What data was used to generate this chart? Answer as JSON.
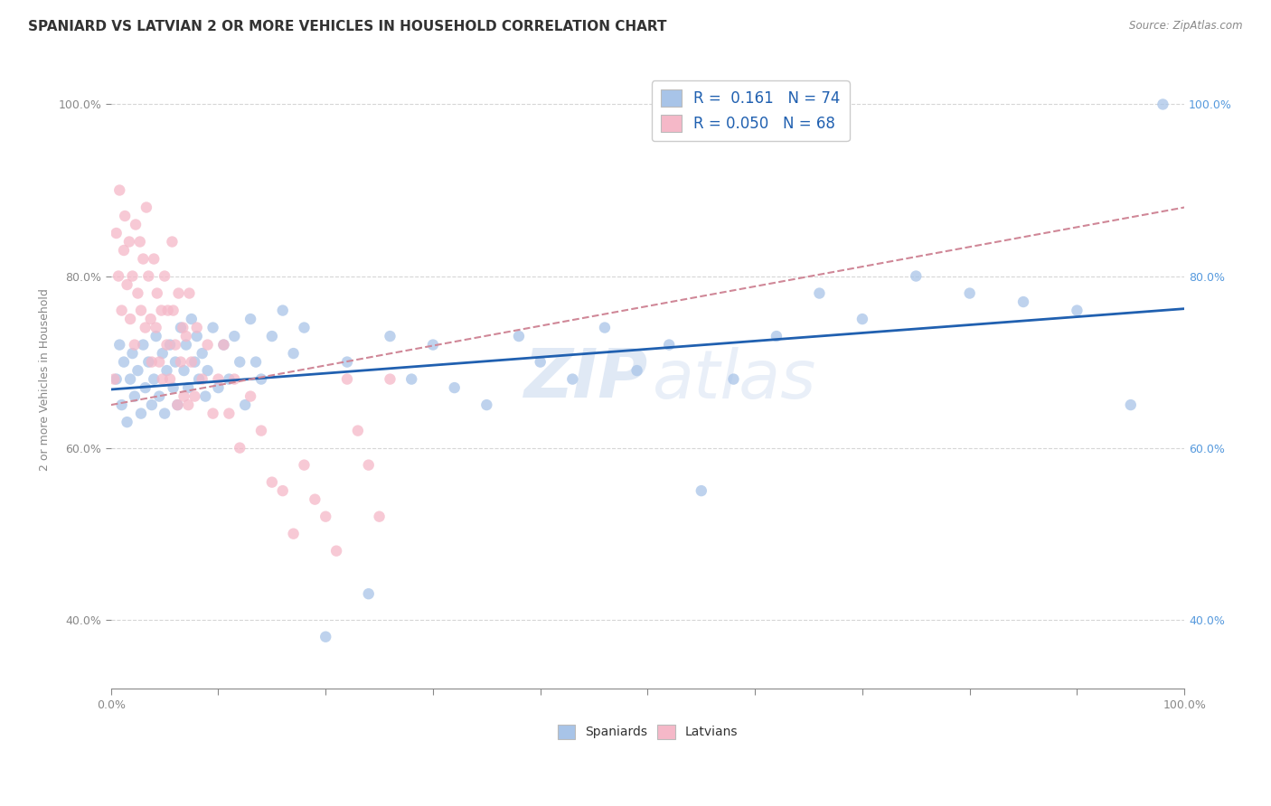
{
  "title": "SPANIARD VS LATVIAN 2 OR MORE VEHICLES IN HOUSEHOLD CORRELATION CHART",
  "source": "Source: ZipAtlas.com",
  "ylabel": "2 or more Vehicles in Household",
  "blue_R": 0.161,
  "blue_N": 74,
  "pink_R": 0.05,
  "pink_N": 68,
  "blue_color": "#a8c4e8",
  "pink_color": "#f5b8c8",
  "blue_line_color": "#2060b0",
  "pink_line_color": "#d08898",
  "watermark_zip": "ZIP",
  "watermark_atlas": "atlas",
  "xmin": 0.0,
  "xmax": 1.0,
  "ymin": 0.32,
  "ymax": 1.04,
  "blue_scatter_x": [
    0.005,
    0.008,
    0.01,
    0.012,
    0.015,
    0.018,
    0.02,
    0.022,
    0.025,
    0.028,
    0.03,
    0.032,
    0.035,
    0.038,
    0.04,
    0.042,
    0.045,
    0.048,
    0.05,
    0.052,
    0.055,
    0.058,
    0.06,
    0.062,
    0.065,
    0.068,
    0.07,
    0.072,
    0.075,
    0.078,
    0.08,
    0.082,
    0.085,
    0.088,
    0.09,
    0.095,
    0.1,
    0.105,
    0.11,
    0.115,
    0.12,
    0.125,
    0.13,
    0.135,
    0.14,
    0.15,
    0.16,
    0.17,
    0.18,
    0.2,
    0.22,
    0.24,
    0.26,
    0.28,
    0.3,
    0.32,
    0.35,
    0.38,
    0.4,
    0.43,
    0.46,
    0.49,
    0.52,
    0.55,
    0.58,
    0.62,
    0.66,
    0.7,
    0.75,
    0.8,
    0.85,
    0.9,
    0.95,
    0.98
  ],
  "blue_scatter_y": [
    0.68,
    0.72,
    0.65,
    0.7,
    0.63,
    0.68,
    0.71,
    0.66,
    0.69,
    0.64,
    0.72,
    0.67,
    0.7,
    0.65,
    0.68,
    0.73,
    0.66,
    0.71,
    0.64,
    0.69,
    0.72,
    0.67,
    0.7,
    0.65,
    0.74,
    0.69,
    0.72,
    0.67,
    0.75,
    0.7,
    0.73,
    0.68,
    0.71,
    0.66,
    0.69,
    0.74,
    0.67,
    0.72,
    0.68,
    0.73,
    0.7,
    0.65,
    0.75,
    0.7,
    0.68,
    0.73,
    0.76,
    0.71,
    0.74,
    0.38,
    0.7,
    0.43,
    0.73,
    0.68,
    0.72,
    0.67,
    0.65,
    0.73,
    0.7,
    0.68,
    0.74,
    0.69,
    0.72,
    0.55,
    0.68,
    0.73,
    0.78,
    0.75,
    0.8,
    0.78,
    0.77,
    0.76,
    0.65,
    1.0
  ],
  "pink_scatter_x": [
    0.003,
    0.005,
    0.007,
    0.008,
    0.01,
    0.012,
    0.013,
    0.015,
    0.017,
    0.018,
    0.02,
    0.022,
    0.023,
    0.025,
    0.027,
    0.028,
    0.03,
    0.032,
    0.033,
    0.035,
    0.037,
    0.038,
    0.04,
    0.042,
    0.043,
    0.045,
    0.047,
    0.048,
    0.05,
    0.052,
    0.053,
    0.055,
    0.057,
    0.058,
    0.06,
    0.062,
    0.063,
    0.065,
    0.067,
    0.068,
    0.07,
    0.072,
    0.073,
    0.075,
    0.078,
    0.08,
    0.085,
    0.09,
    0.095,
    0.1,
    0.105,
    0.11,
    0.115,
    0.12,
    0.13,
    0.14,
    0.15,
    0.16,
    0.17,
    0.18,
    0.19,
    0.2,
    0.21,
    0.22,
    0.23,
    0.24,
    0.25,
    0.26
  ],
  "pink_scatter_y": [
    0.68,
    0.85,
    0.8,
    0.9,
    0.76,
    0.83,
    0.87,
    0.79,
    0.84,
    0.75,
    0.8,
    0.72,
    0.86,
    0.78,
    0.84,
    0.76,
    0.82,
    0.74,
    0.88,
    0.8,
    0.75,
    0.7,
    0.82,
    0.74,
    0.78,
    0.7,
    0.76,
    0.68,
    0.8,
    0.72,
    0.76,
    0.68,
    0.84,
    0.76,
    0.72,
    0.65,
    0.78,
    0.7,
    0.74,
    0.66,
    0.73,
    0.65,
    0.78,
    0.7,
    0.66,
    0.74,
    0.68,
    0.72,
    0.64,
    0.68,
    0.72,
    0.64,
    0.68,
    0.6,
    0.66,
    0.62,
    0.56,
    0.55,
    0.5,
    0.58,
    0.54,
    0.52,
    0.48,
    0.68,
    0.62,
    0.58,
    0.52,
    0.68
  ],
  "blue_trend_x0": 0.0,
  "blue_trend_x1": 1.0,
  "blue_trend_y0": 0.668,
  "blue_trend_y1": 0.762,
  "pink_trend_x0": 0.0,
  "pink_trend_x1": 1.0,
  "pink_trend_y0": 0.65,
  "pink_trend_y1": 0.88
}
